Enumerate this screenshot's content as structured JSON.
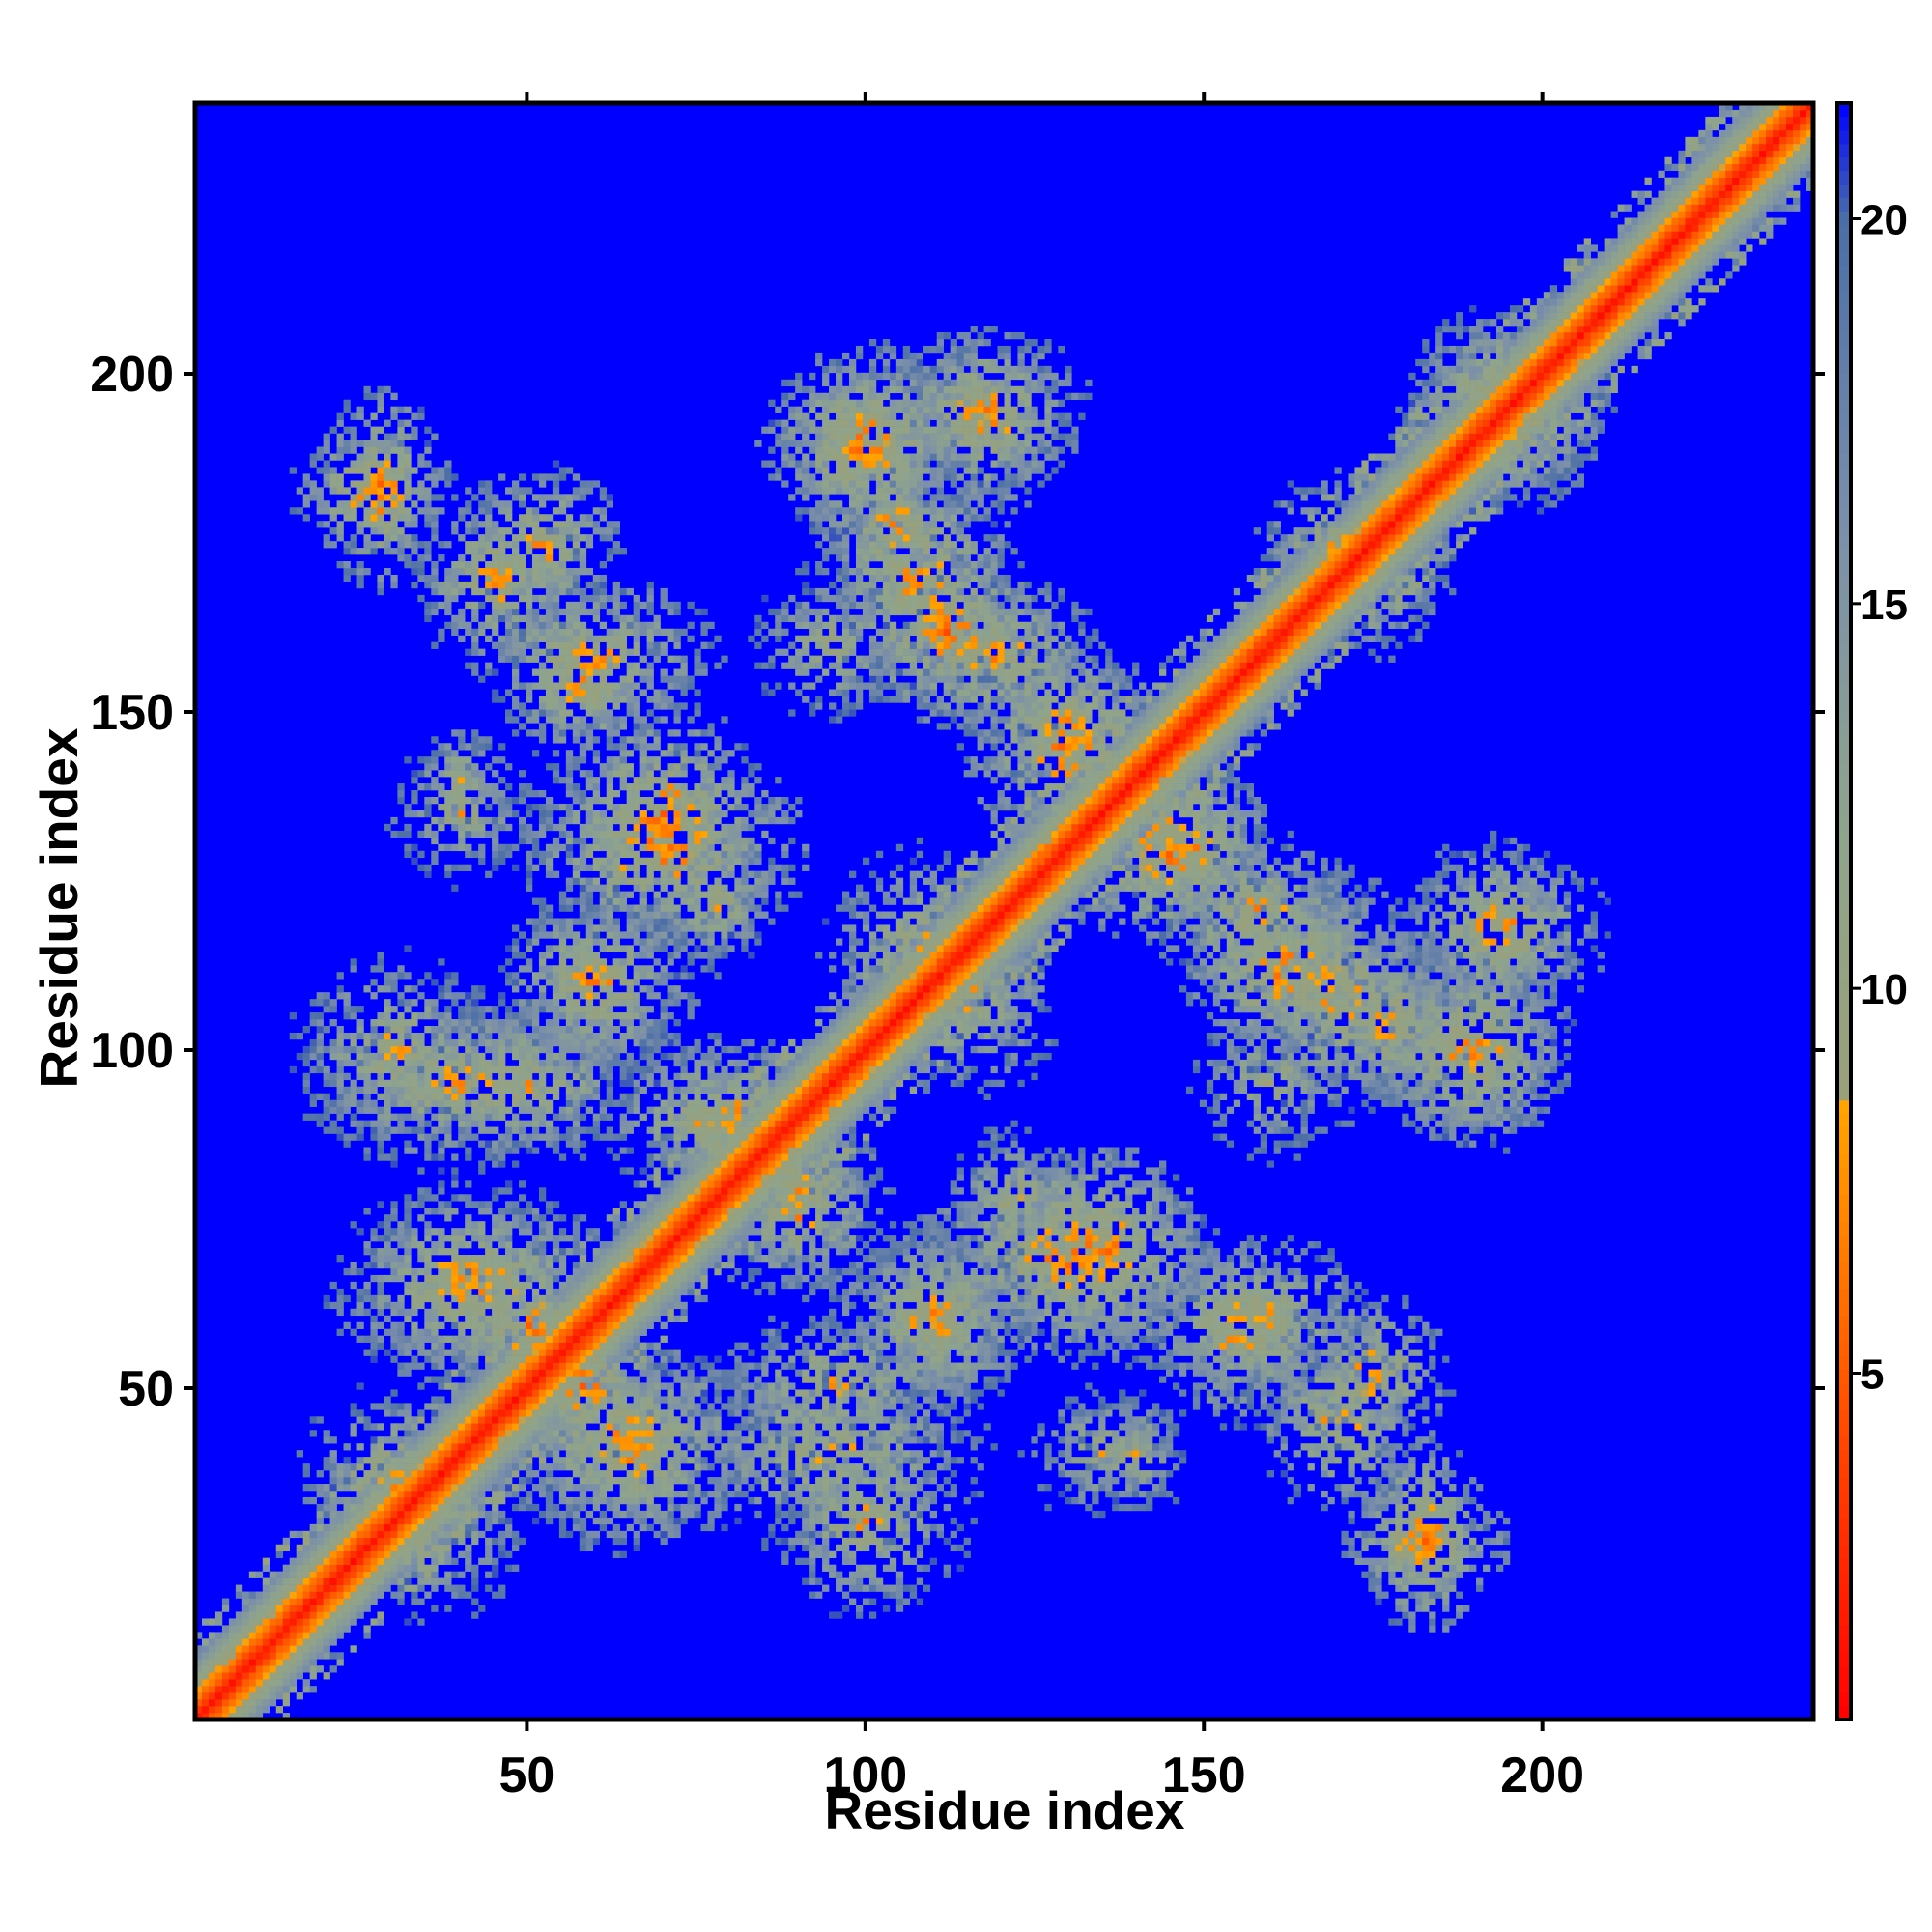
{
  "chart_data": {
    "type": "heatmap",
    "title": "",
    "xlabel": "Residue index",
    "ylabel": "Residue index",
    "xlim": [
      1,
      240
    ],
    "ylim": [
      1,
      240
    ],
    "x_ticks": [
      50,
      100,
      150,
      200
    ],
    "y_ticks": [
      50,
      100,
      150,
      200
    ],
    "colorbar": {
      "ticks": [
        5,
        10,
        15,
        20
      ],
      "range": [
        0.5,
        21.5
      ],
      "stops": [
        {
          "value": 0.5,
          "color": "#ff0000"
        },
        {
          "value": 4.0,
          "color": "#ff4400"
        },
        {
          "value": 8.5,
          "color": "#ffa500"
        },
        {
          "value": 8.6,
          "color": "#9aa07a"
        },
        {
          "value": 12.0,
          "color": "#8fa48c"
        },
        {
          "value": 16.0,
          "color": "#7b8faa"
        },
        {
          "value": 20.0,
          "color": "#4b6ea6"
        },
        {
          "value": 21.5,
          "color": "#0000ff"
        }
      ]
    },
    "background_value": 21.5,
    "diagonal": {
      "width": 9,
      "min_value": 1
    },
    "contact_clusters": [
      {
        "x": 27,
        "y": 183,
        "rx": 8,
        "ry": 6,
        "min": 4
      },
      {
        "x": 45,
        "y": 170,
        "rx": 8,
        "ry": 9,
        "min": 5
      },
      {
        "x": 58,
        "y": 155,
        "rx": 8,
        "ry": 9,
        "min": 5
      },
      {
        "x": 70,
        "y": 135,
        "rx": 10,
        "ry": 11,
        "min": 4
      },
      {
        "x": 78,
        "y": 122,
        "rx": 6,
        "ry": 7,
        "min": 6
      },
      {
        "x": 60,
        "y": 110,
        "rx": 9,
        "ry": 10,
        "min": 6
      },
      {
        "x": 40,
        "y": 95,
        "rx": 16,
        "ry": 9,
        "min": 6
      },
      {
        "x": 75,
        "y": 90,
        "rx": 10,
        "ry": 8,
        "min": 6
      },
      {
        "x": 40,
        "y": 65,
        "rx": 10,
        "ry": 10,
        "min": 5
      },
      {
        "x": 50,
        "y": 58,
        "rx": 8,
        "ry": 8,
        "min": 4
      },
      {
        "x": 65,
        "y": 42,
        "rx": 14,
        "ry": 10,
        "min": 5
      },
      {
        "x": 30,
        "y": 35,
        "rx": 10,
        "ry": 10,
        "min": 6
      },
      {
        "x": 100,
        "y": 30,
        "rx": 10,
        "ry": 10,
        "min": 6
      },
      {
        "x": 95,
        "y": 50,
        "rx": 12,
        "ry": 8,
        "min": 6
      },
      {
        "x": 110,
        "y": 60,
        "rx": 10,
        "ry": 9,
        "min": 5
      },
      {
        "x": 130,
        "y": 70,
        "rx": 14,
        "ry": 10,
        "min": 4
      },
      {
        "x": 90,
        "y": 80,
        "rx": 8,
        "ry": 8,
        "min": 5
      },
      {
        "x": 100,
        "y": 190,
        "rx": 10,
        "ry": 9,
        "min": 4
      },
      {
        "x": 118,
        "y": 195,
        "rx": 10,
        "ry": 8,
        "min": 5
      },
      {
        "x": 108,
        "y": 170,
        "rx": 10,
        "ry": 12,
        "min": 5
      },
      {
        "x": 120,
        "y": 158,
        "rx": 10,
        "ry": 8,
        "min": 5
      },
      {
        "x": 130,
        "y": 148,
        "rx": 8,
        "ry": 8,
        "min": 5
      },
      {
        "x": 115,
        "y": 108,
        "rx": 10,
        "ry": 10,
        "min": 6
      },
      {
        "x": 145,
        "y": 130,
        "rx": 10,
        "ry": 10,
        "min": 4
      },
      {
        "x": 162,
        "y": 112,
        "rx": 10,
        "ry": 9,
        "min": 4
      },
      {
        "x": 178,
        "y": 104,
        "rx": 8,
        "ry": 8,
        "min": 5
      },
      {
        "x": 190,
        "y": 100,
        "rx": 9,
        "ry": 10,
        "min": 5
      },
      {
        "x": 193,
        "y": 118,
        "rx": 8,
        "ry": 9,
        "min": 5
      },
      {
        "x": 158,
        "y": 60,
        "rx": 12,
        "ry": 8,
        "min": 5
      },
      {
        "x": 175,
        "y": 52,
        "rx": 8,
        "ry": 8,
        "min": 5
      },
      {
        "x": 183,
        "y": 28,
        "rx": 6,
        "ry": 10,
        "min": 4
      },
      {
        "x": 135,
        "y": 40,
        "rx": 8,
        "ry": 7,
        "min": 7
      },
      {
        "x": 195,
        "y": 195,
        "rx": 10,
        "ry": 10,
        "min": 5
      },
      {
        "x": 175,
        "y": 170,
        "rx": 8,
        "ry": 8,
        "min": 6
      },
      {
        "x": 40,
        "y": 140,
        "rx": 6,
        "ry": 6,
        "min": 7
      },
      {
        "x": 160,
        "y": 95,
        "rx": 8,
        "ry": 8,
        "min": 7
      }
    ]
  }
}
